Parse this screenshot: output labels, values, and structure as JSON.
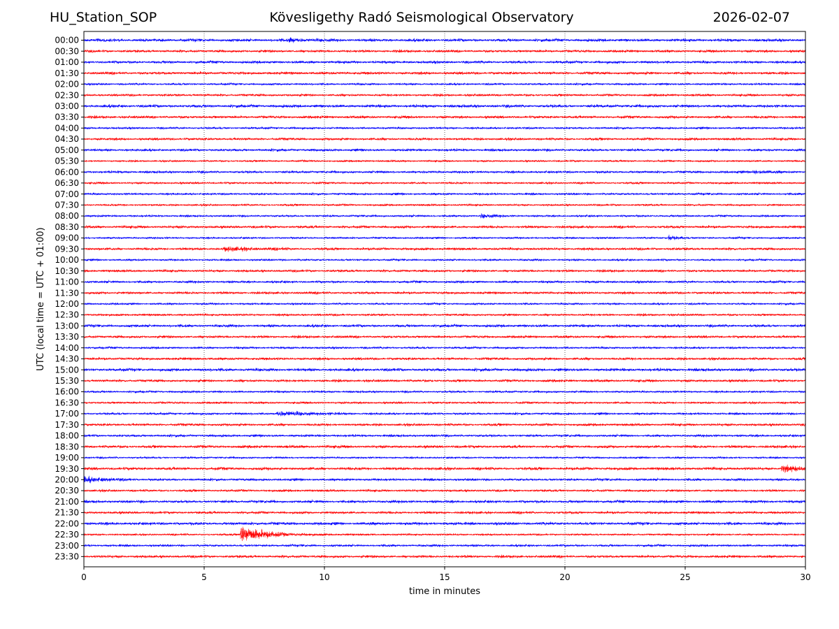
{
  "header": {
    "station": "HU_Station_SOP",
    "observatory": "Kövesligethy Radó Seismological Observatory",
    "date": "2026-02-07"
  },
  "chart_data": {
    "type": "line",
    "title": "Kövesligethy Radó Seismological Observatory",
    "xlabel": "time in minutes",
    "ylabel": "UTC (local time = UTC + 01:00)",
    "xlim": [
      0,
      30
    ],
    "x_ticks": [
      "0",
      "5",
      "10",
      "15",
      "20",
      "25",
      "30"
    ],
    "x_tick_values": [
      0,
      5,
      10,
      15,
      20,
      25,
      30
    ],
    "grid": "vertical dotted at x ticks",
    "row_labels": [
      "00:00",
      "00:30",
      "01:00",
      "01:30",
      "02:00",
      "02:30",
      "03:00",
      "03:30",
      "04:00",
      "04:30",
      "05:00",
      "05:30",
      "06:00",
      "06:30",
      "07:00",
      "07:30",
      "08:00",
      "08:30",
      "09:00",
      "09:30",
      "10:00",
      "10:30",
      "11:00",
      "11:30",
      "12:00",
      "12:30",
      "13:00",
      "13:30",
      "14:00",
      "14:30",
      "15:00",
      "15:30",
      "16:00",
      "16:30",
      "17:00",
      "17:30",
      "18:00",
      "18:30",
      "19:00",
      "19:30",
      "20:00",
      "20:30",
      "21:00",
      "21:30",
      "22:00",
      "22:30",
      "23:00",
      "23:30"
    ],
    "trace_colors": [
      "#0000ff",
      "#ff0000"
    ],
    "noise_amplitude": 1.4,
    "events": [
      {
        "row": "22:30",
        "start_min": 6.5,
        "peak_amplitude": 12,
        "decay_min": 0.9,
        "coda_end_min": 12
      },
      {
        "row": "19:30",
        "start_min": 29.0,
        "peak_amplitude": 4,
        "decay_min": 0.6,
        "coda_end_min": 30
      },
      {
        "row": "20:00",
        "start_min": 0.0,
        "peak_amplitude": 3.5,
        "decay_min": 0.8,
        "coda_end_min": 2
      },
      {
        "row": "17:00",
        "start_min": 8.0,
        "peak_amplitude": 2.5,
        "decay_min": 1.5,
        "coda_end_min": 11
      },
      {
        "row": "08:00",
        "start_min": 16.5,
        "peak_amplitude": 3,
        "decay_min": 0.4,
        "coda_end_min": 17.5
      },
      {
        "row": "09:00",
        "start_min": 24.3,
        "peak_amplitude": 3,
        "decay_min": 0.4,
        "coda_end_min": 25
      },
      {
        "row": "06:00",
        "start_min": 27.8,
        "peak_amplitude": 2.5,
        "decay_min": 0.5,
        "coda_end_min": 29
      },
      {
        "row": "09:30",
        "start_min": 5.8,
        "peak_amplitude": 2,
        "decay_min": 1.2,
        "coda_end_min": 8.5
      },
      {
        "row": "00:00",
        "start_min": 8.5,
        "peak_amplitude": 2,
        "decay_min": 0.8,
        "coda_end_min": 10
      }
    ]
  }
}
